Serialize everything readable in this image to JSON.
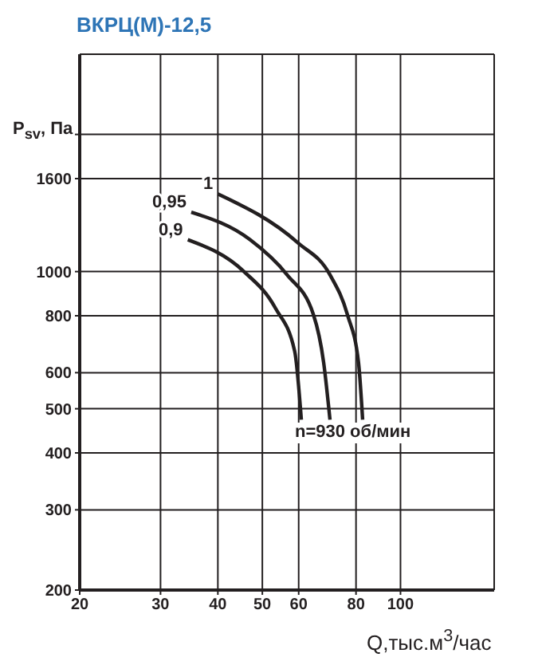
{
  "chart_data": {
    "type": "line",
    "title": "ВКРЦ(М)-12,5",
    "xlabel": "Q,тыс.м$^{3}$/час",
    "ylabel": "P$_{sv}$, Па",
    "annotations": [
      "n=930 об/мин"
    ],
    "log": "xy",
    "grid": true,
    "marker": "none",
    "line_style": "solid",
    "xlim": [
      20,
      160
    ],
    "xticks": [
      20,
      30,
      40,
      50,
      60,
      80,
      100
    ],
    "ylim": [
      200,
      3000
    ],
    "yticks": [
      200,
      300,
      400,
      500,
      600,
      800,
      1000,
      1600,
      {
        "value": 2000,
        "label": null
      }
    ],
    "series": [
      {
        "name": "1",
        "color": "#231f20",
        "x": [
          40,
          59.8,
          70.2,
          76.6,
          81,
          82.7
        ],
        "values": [
          1480,
          1156,
          984,
          805,
          632,
          473
        ]
      },
      {
        "name": "0,95",
        "color": "#231f20",
        "x": [
          35,
          47,
          56.6,
          64.6,
          68,
          70.2
        ],
        "values": [
          1350,
          1175,
          984,
          805,
          632,
          473
        ]
      },
      {
        "name": "0,9",
        "color": "#231f20",
        "x": [
          34.4,
          45.6,
          53.4,
          58.8,
          60.8
        ],
        "values": [
          1175,
          1000,
          831,
          669,
          473
        ]
      }
    ]
  }
}
